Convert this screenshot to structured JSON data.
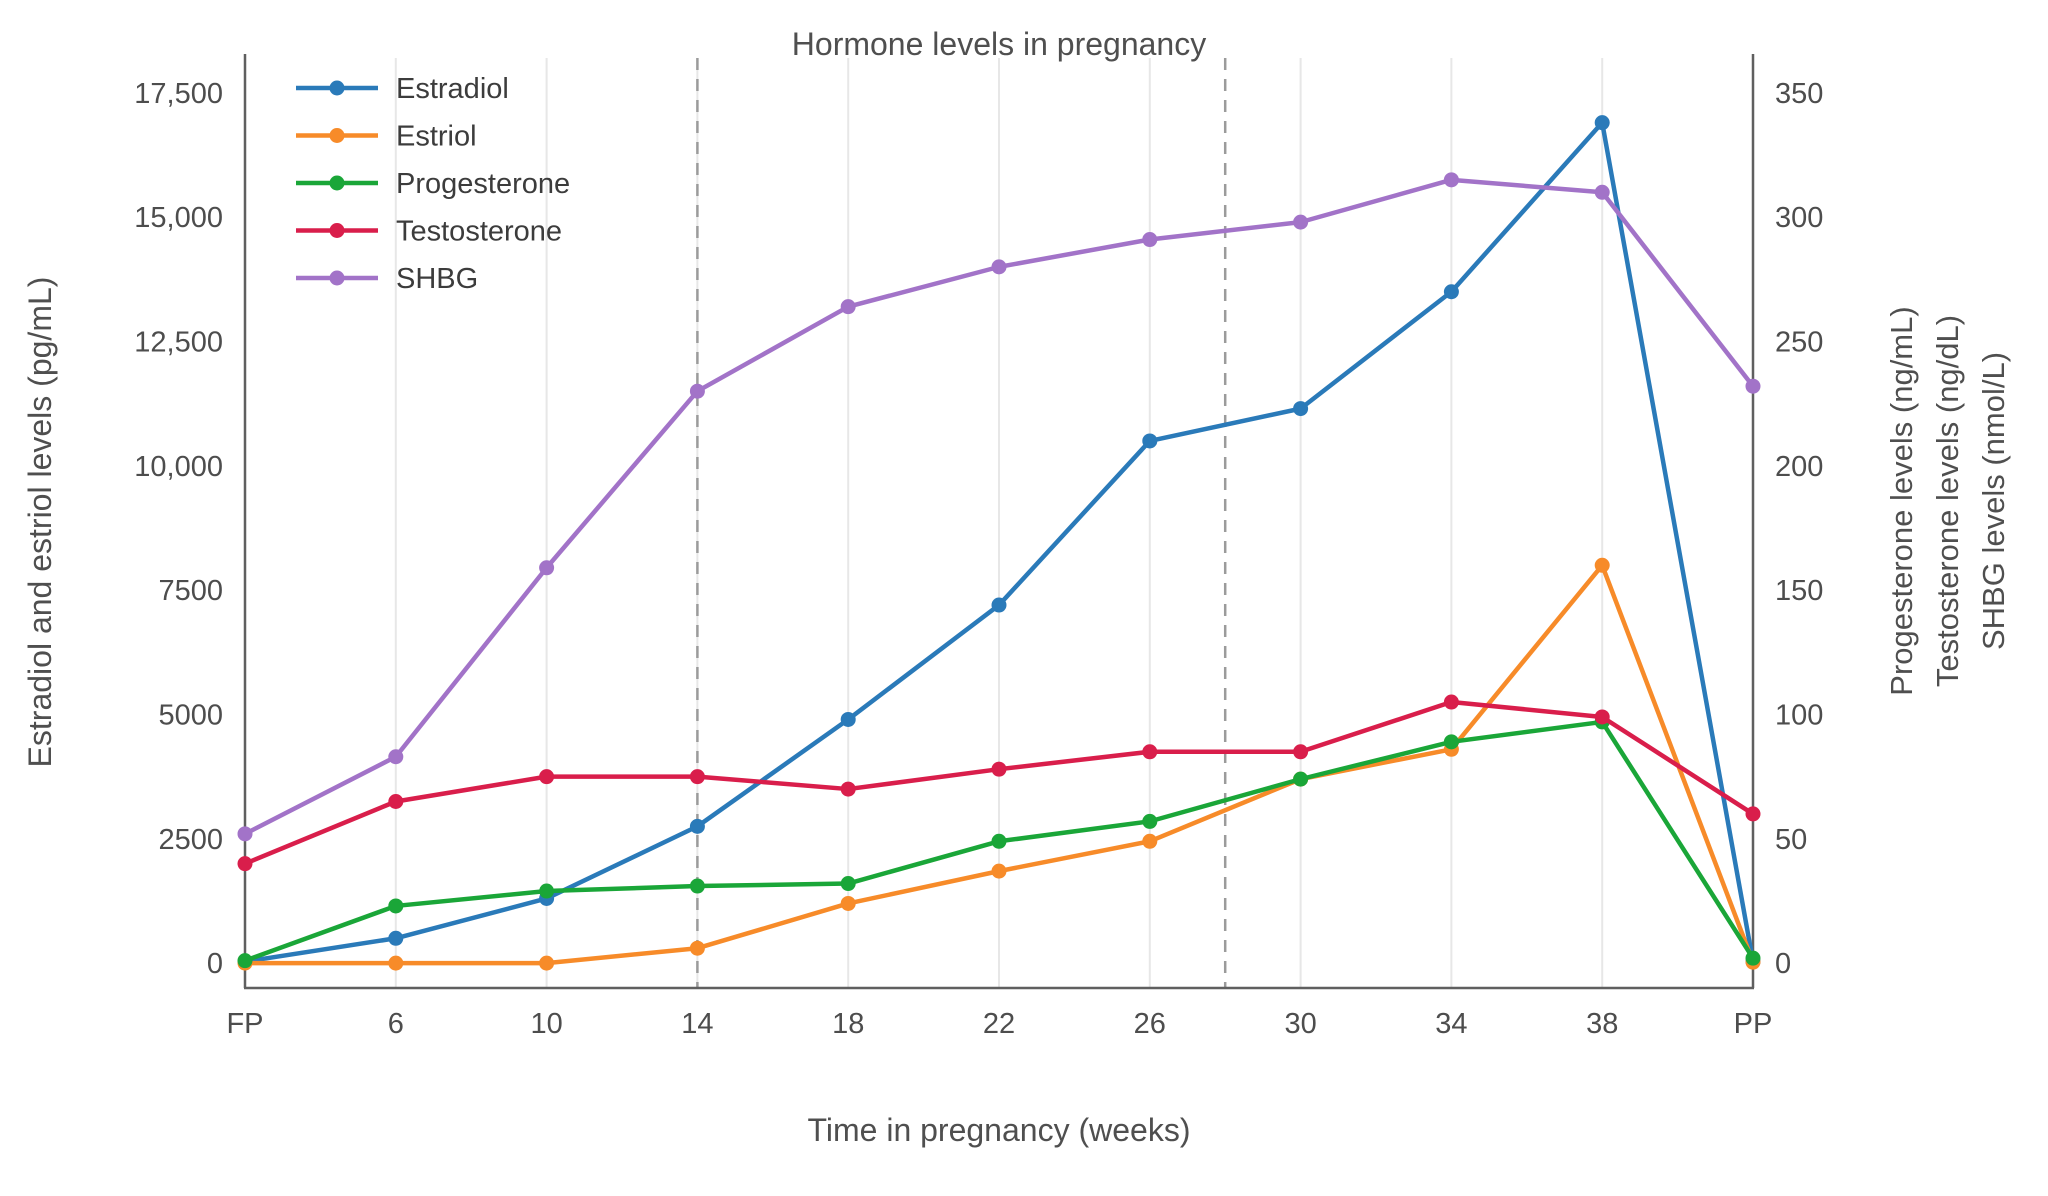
{
  "chart": {
    "title": "Hormone levels in pregnancy",
    "xlabel": "Time in pregnancy (weeks)",
    "left_axis_label": "Estradiol and estriol levels (pg/mL)",
    "right_axis_labels": [
      "Progesterone levels (ng/mL)",
      "Testosterone levels (ng/dL)",
      "SHBG levels (nmol/L)"
    ]
  },
  "chart_data": {
    "type": "line",
    "title": "Hormone levels in pregnancy",
    "xlabel": "Time in pregnancy (weeks)",
    "categories": [
      "FP",
      "6",
      "10",
      "14",
      "18",
      "22",
      "26",
      "30",
      "34",
      "38",
      "PP"
    ],
    "left_axis": {
      "label": "Estradiol and estriol levels (pg/mL)",
      "tick_labels": [
        "0",
        "2500",
        "5000",
        "7500",
        "10,000",
        "12,500",
        "15,000",
        "17,500"
      ],
      "tick_values": [
        0,
        2500,
        5000,
        7500,
        10000,
        12500,
        15000,
        17500
      ],
      "range": [
        0,
        17500
      ]
    },
    "right_axis": {
      "labels": [
        "Progesterone levels (ng/mL)",
        "Testosterone levels (ng/dL)",
        "SHBG levels (nmol/L)"
      ],
      "tick_labels": [
        "0",
        "50",
        "100",
        "150",
        "200",
        "250",
        "300",
        "350"
      ],
      "tick_values": [
        0,
        50,
        100,
        150,
        200,
        250,
        300,
        350
      ],
      "range": [
        0,
        350
      ],
      "left_units_per_right_unit": 50
    },
    "series": [
      {
        "name": "Estradiol",
        "axis": "left",
        "units": "pg/mL",
        "color": "#2a7ab9",
        "values": [
          30,
          500,
          1300,
          2750,
          4900,
          7200,
          10500,
          11150,
          13500,
          16900,
          30
        ]
      },
      {
        "name": "Estriol",
        "axis": "left",
        "units": "pg/mL",
        "color": "#f78b29",
        "values": [
          0,
          0,
          0,
          300,
          1200,
          1850,
          2450,
          3700,
          4300,
          8000,
          20
        ]
      },
      {
        "name": "Progesterone",
        "axis": "right",
        "units": "ng/mL",
        "color": "#1aa638",
        "values": [
          1,
          23,
          29,
          31,
          32,
          49,
          57,
          74,
          89,
          97,
          2
        ]
      },
      {
        "name": "Testosterone",
        "axis": "right",
        "units": "ng/dL",
        "color": "#d91e4b",
        "values": [
          40,
          65,
          75,
          75,
          70,
          78,
          85,
          85,
          105,
          99,
          60
        ]
      },
      {
        "name": "SHBG",
        "axis": "right",
        "units": "nmol/L",
        "color": "#a273c8",
        "values": [
          52,
          83,
          159,
          230,
          264,
          280,
          291,
          298,
          315,
          310,
          232
        ]
      }
    ],
    "vlines_dashed_at_category_index": [
      3,
      6.5
    ],
    "grid": "vertical-only",
    "legend_position": "top-left-inside"
  },
  "style": {
    "gridline_color": "#e7e7e7",
    "dashed_line_color": "#9b9b9b",
    "frame_color": "#5f5f5f",
    "tick_color": "#4d4d4d"
  }
}
